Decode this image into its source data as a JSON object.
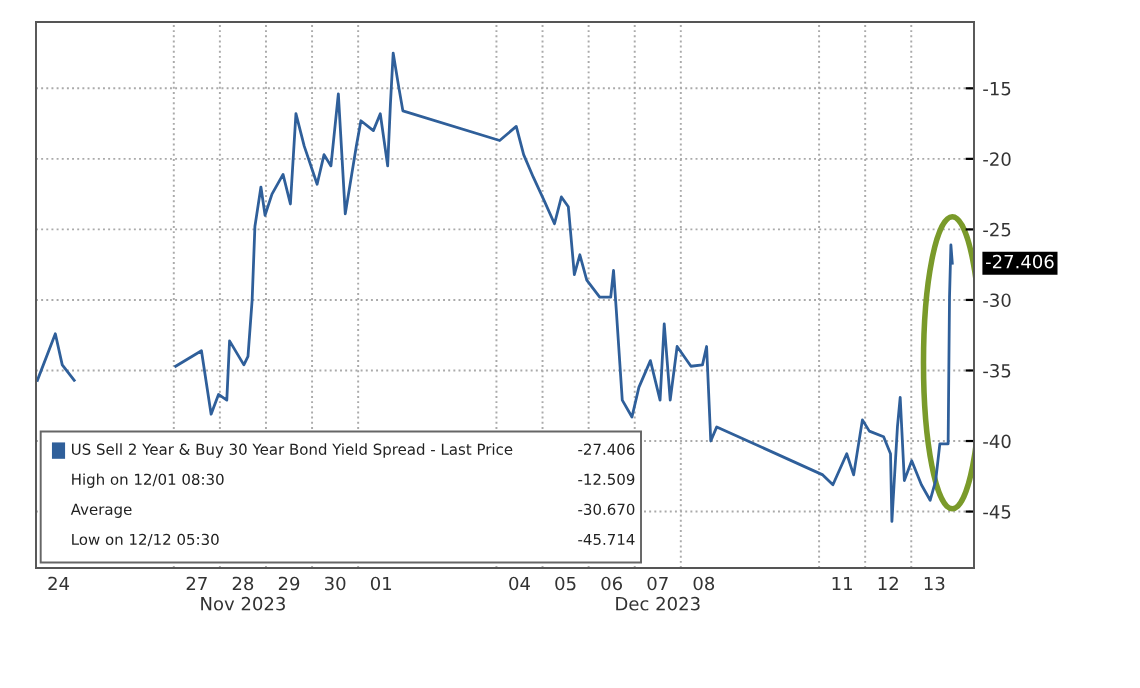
{
  "chart_data": {
    "type": "line",
    "series": [
      {
        "name": "US Sell 2 Year & Buy 30 Year Bond Yield Spread - Last Price",
        "color": "#2f5f9a",
        "x": [
          "2023-11-24T00:58",
          "2023-11-24T10:19",
          "2023-11-24T13:55",
          "2023-11-24T20:10",
          "2023-11-24T22:48",
          "2023-11-27T00:58",
          "2023-11-27T14:24",
          "2023-11-27T19:26",
          "2023-11-27T23:17",
          "2023-11-28T03:36",
          "2023-11-28T05:02",
          "2023-11-28T12:29",
          "2023-11-28T14:38",
          "2023-11-28T16:48",
          "2023-11-28T18:14",
          "2023-11-28T21:22",
          "2023-11-28T23:31",
          "2023-11-29T03:07",
          "2023-11-29T08:53",
          "2023-11-29T12:43",
          "2023-11-29T15:36",
          "2023-11-29T19:55",
          "2023-11-30T02:38",
          "2023-11-30T06:14",
          "2023-11-30T09:50",
          "2023-11-30T13:41",
          "2023-11-30T17:17",
          "2023-11-30T23:02",
          "2023-12-01T01:26",
          "2023-12-01T07:55",
          "2023-12-01T11:31",
          "2023-12-01T15:22",
          "2023-12-01T16:48",
          "2023-12-01T18:14",
          "2023-12-01T21:07",
          "2023-12-01T23:17",
          "2023-12-04T01:41",
          "2023-12-04T10:19",
          "2023-12-04T14:10",
          "2023-12-04T19:12",
          "2023-12-05T00:58",
          "2023-12-05T06:14",
          "2023-12-05T09:50",
          "2023-12-05T13:26",
          "2023-12-05T16:34",
          "2023-12-05T19:26",
          "2023-12-05T23:02",
          "2023-12-06T05:46",
          "2023-12-06T11:31",
          "2023-12-06T12:58",
          "2023-12-06T14:24",
          "2023-12-06T17:31",
          "2023-12-06T22:34",
          "2023-12-07T02:10",
          "2023-12-07T08:10",
          "2023-12-07T13:12",
          "2023-12-07T15:22",
          "2023-12-07T18:29",
          "2023-12-07T22:05",
          "2023-12-08T05:17",
          "2023-12-08T11:17",
          "2023-12-08T13:26",
          "2023-12-08T15:36",
          "2023-12-08T18:43",
          "2023-12-11T01:55",
          "2023-12-11T07:12",
          "2023-12-11T14:24",
          "2023-12-11T18:00",
          "2023-12-11T22:34",
          "2023-12-12T02:10",
          "2023-12-12T09:36",
          "2023-12-12T13:12",
          "2023-12-12T13:55",
          "2023-12-12T16:48",
          "2023-12-12T18:14",
          "2023-12-12T20:24",
          "2023-12-13T00:14",
          "2023-12-13T05:17",
          "2023-12-13T09:50",
          "2023-12-13T12:43",
          "2023-12-13T14:53",
          "2023-12-13T19:12",
          "2023-12-13T19:55",
          "2023-12-13T20:38",
          "2023-12-13T21:22"
        ],
        "values": [
          -35.7,
          -32.4,
          -34.6,
          -35.7,
          null,
          -34.7,
          -33.6,
          -38.1,
          -36.7,
          -37.1,
          -32.9,
          -34.6,
          -34,
          -30,
          -24.8,
          -22,
          -24,
          -22.5,
          -21.1,
          -23.2,
          -16.8,
          -19.1,
          -21.8,
          -19.7,
          -20.5,
          -15.4,
          -23.9,
          -19.1,
          -17.3,
          -18,
          -16.8,
          -20.5,
          -16.1,
          -12.5,
          -14.9,
          -16.6,
          -18.7,
          -17.7,
          -19.7,
          -21.3,
          -23,
          -24.6,
          -22.7,
          -23.4,
          -28.2,
          -26.8,
          -28.6,
          -29.8,
          -29.8,
          -27.9,
          -30.7,
          -37.1,
          -38.3,
          -36.2,
          -34.3,
          -37.1,
          -31.7,
          -37.1,
          -33.3,
          -34.7,
          -34.6,
          -33.3,
          -40,
          -39,
          -42.4,
          -43.1,
          -40.9,
          -42.4,
          -38.5,
          -39.3,
          -39.7,
          -40.9,
          -45.7,
          -39,
          -36.9,
          -42.8,
          -41.4,
          -43.1,
          -44.2,
          -42.8,
          -40.2,
          -40.2,
          -29.8,
          -26.1,
          -27.4
        ]
      }
    ],
    "xlim": [
      "2023-11-24T00:15",
      "2023-12-14T08:40"
    ],
    "xticks": [
      {
        "value": "2023-11-24T12:00",
        "label": "24"
      },
      {
        "value": "2023-11-27T12:00",
        "label": "27"
      },
      {
        "value": "2023-11-28T12:00",
        "label": "28\nNov 2023"
      },
      {
        "value": "2023-11-29T12:00",
        "label": "29"
      },
      {
        "value": "2023-11-30T12:00",
        "label": "30"
      },
      {
        "value": "2023-12-01T12:00",
        "label": "01"
      },
      {
        "value": "2023-12-04T12:00",
        "label": "04"
      },
      {
        "value": "2023-12-05T12:00",
        "label": "05"
      },
      {
        "value": "2023-12-06T12:00",
        "label": "06"
      },
      {
        "value": "2023-12-07T12:00",
        "label": "07\nDec 2023"
      },
      {
        "value": "2023-12-08T12:00",
        "label": "08"
      },
      {
        "value": "2023-12-11T12:00",
        "label": "11"
      },
      {
        "value": "2023-12-12T12:00",
        "label": "12"
      },
      {
        "value": "2023-12-13T12:00",
        "label": "13"
      },
      {
        "value": "2023-11-27",
        "label": null
      },
      {
        "value": "2023-11-28",
        "label": null
      },
      {
        "value": "2023-11-29",
        "label": null
      },
      {
        "value": "2023-11-30",
        "label": null
      },
      {
        "value": "2023-12-01",
        "label": null
      },
      {
        "value": "2023-12-04",
        "label": null
      },
      {
        "value": "2023-12-05",
        "label": null
      },
      {
        "value": "2023-12-06",
        "label": null
      },
      {
        "value": "2023-12-07",
        "label": null
      },
      {
        "value": "2023-12-08",
        "label": null
      },
      {
        "value": "2023-12-11",
        "label": null
      },
      {
        "value": "2023-12-12",
        "label": null
      },
      {
        "value": "2023-12-13",
        "label": null
      }
    ],
    "ylim": [
      -49,
      -10.3
    ],
    "yticks": [
      -15,
      -20,
      -25,
      -30,
      -35,
      -40,
      -45
    ],
    "grid": true,
    "legend": "bottom left",
    "annotations": [
      "-27.406",
      "-27.406",
      "High on 12/01 08:30",
      "-12.509",
      "Average",
      "-30.670",
      "Low on 12/12 05:30",
      "-45.714"
    ]
  }
}
